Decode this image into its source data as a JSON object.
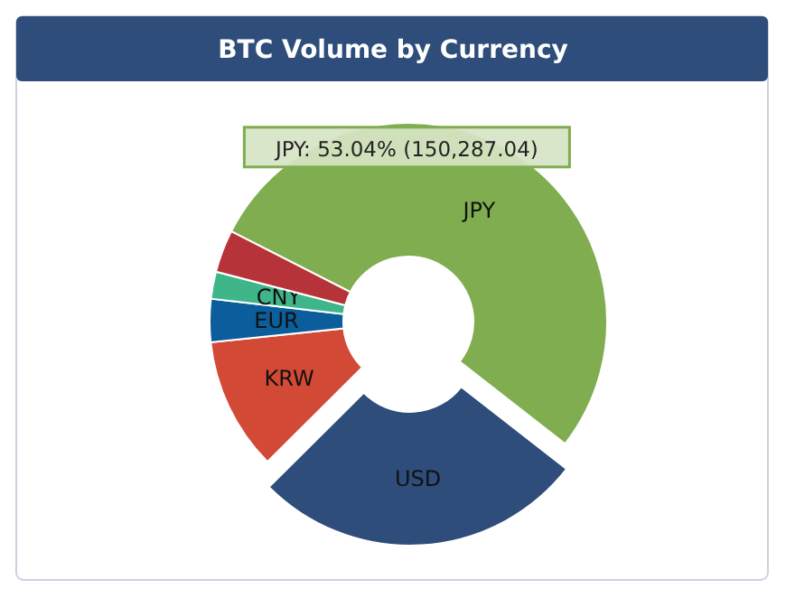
{
  "chart_data": {
    "type": "donut",
    "title": "BTC Volume by Currency",
    "categories": [
      "JPY",
      "USD",
      "KRW",
      "EUR",
      "CNY",
      null
    ],
    "values": [
      53.04,
      27.0,
      10.8,
      3.5,
      2.2,
      3.46
    ],
    "colors": [
      "#7fad4f",
      "#2e4d7b",
      "#d24a35",
      "#0b5e9b",
      "#3fb68a",
      "#b7333a"
    ],
    "annotations": [
      {
        "text": "JPY: 53.04% (150,287.04)",
        "x": "JPY"
      }
    ],
    "legend": false
  }
}
